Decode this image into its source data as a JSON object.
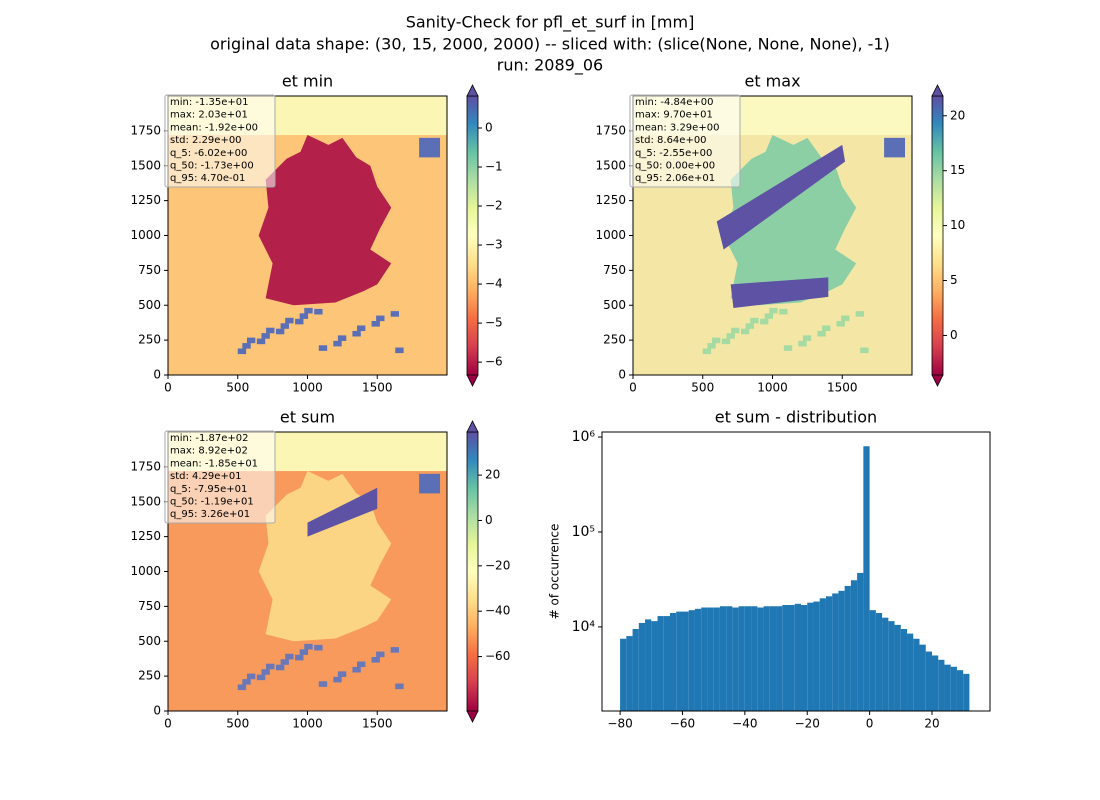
{
  "suptitle": [
    "Sanity-Check for pfl_et_surf in [mm]",
    "original data shape: (30, 15, 2000, 2000) -- sliced with: (slice(None, None, None), -1)",
    "run: 2089_06"
  ],
  "chart_data": [
    {
      "type": "heatmap",
      "title": "et min",
      "xlim": [
        0,
        2000
      ],
      "ylim": [
        0,
        2000
      ],
      "xticks": [
        0,
        500,
        1000,
        1500
      ],
      "yticks": [
        0,
        250,
        500,
        750,
        1000,
        1250,
        1500,
        1750
      ],
      "colormap": "Spectral",
      "clim": [
        -6.33,
        0.82
      ],
      "cticks": [
        {
          "value": 0,
          "label": "0"
        },
        {
          "value": -1,
          "label": "−1"
        },
        {
          "value": -2,
          "label": "−2"
        },
        {
          "value": -3,
          "label": "−3"
        },
        {
          "value": -4,
          "label": "−4"
        },
        {
          "value": -5,
          "label": "−5"
        },
        {
          "value": -6,
          "label": "−6"
        }
      ],
      "stats": [
        "min: -1.35e+01",
        "max: 2.03e+01",
        "mean: -1.92e+00",
        "std: 2.29e+00",
        "q_5: -6.02e+00",
        "q_50: -1.73e+00",
        "q_95: 4.70e-01"
      ]
    },
    {
      "type": "heatmap",
      "title": "et max",
      "xlim": [
        0,
        2000
      ],
      "ylim": [
        0,
        2000
      ],
      "xticks": [
        0,
        500,
        1000,
        1500
      ],
      "yticks": [
        0,
        250,
        500,
        750,
        1000,
        1250,
        1500,
        1750
      ],
      "colormap": "Spectral",
      "clim": [
        -3.6,
        21.8
      ],
      "cticks": [
        0,
        5,
        10,
        15,
        20
      ],
      "stats": [
        "min: -4.84e+00",
        "max: 9.70e+01",
        "mean: 3.29e+00",
        "std: 8.64e+00",
        "q_5: -2.55e+00",
        "q_50: 0.00e+00",
        "q_95: 2.06e+01"
      ]
    },
    {
      "type": "heatmap",
      "title": "et sum",
      "xlim": [
        0,
        2000
      ],
      "ylim": [
        0,
        2000
      ],
      "xticks": [
        0,
        500,
        1000,
        1500
      ],
      "yticks": [
        0,
        250,
        500,
        750,
        1000,
        1250,
        1500,
        1750
      ],
      "colormap": "Spectral",
      "clim": [
        -84,
        39
      ],
      "cticks": [
        20,
        0,
        {
          "value": -20,
          "label": "−20"
        },
        {
          "value": -40,
          "label": "−40"
        },
        {
          "value": -60,
          "label": "−60"
        }
      ],
      "stats": [
        "min: -1.87e+02",
        "max: 8.92e+02",
        "mean: -1.85e+01",
        "std: 4.29e+01",
        "q_5: -7.95e+01",
        "q_50: -1.19e+01",
        "q_95: 3.26e+01"
      ]
    },
    {
      "type": "histogram",
      "title": "et sum - distribution",
      "y_label": "# of occurrence",
      "color": "#1f77b4",
      "yscale": "log",
      "xlim": [
        -85.8,
        38.6
      ],
      "ylim": [
        1300,
        1130000
      ],
      "xticks": [
        {
          "value": -80,
          "label": "−80"
        },
        {
          "value": -60,
          "label": "−60"
        },
        {
          "value": -40,
          "label": "−40"
        },
        {
          "value": -20,
          "label": "−20"
        },
        0,
        20
      ],
      "yticks": [
        {
          "value": 10000,
          "label": "10⁴"
        },
        {
          "value": 100000,
          "label": "10⁵"
        },
        {
          "value": 1000000,
          "label": "10⁶"
        }
      ],
      "bins": [
        -80,
        -78,
        -76,
        -74,
        -72,
        -70,
        -68,
        -66,
        -64,
        -62,
        -60,
        -58,
        -56,
        -54,
        -52,
        -50,
        -48,
        -46,
        -44,
        -42,
        -40,
        -38,
        -36,
        -34,
        -32,
        -30,
        -28,
        -26,
        -24,
        -22,
        -20,
        -18,
        -16,
        -14,
        -12,
        -10,
        -8,
        -6,
        -4,
        -2,
        0,
        2,
        4,
        6,
        8,
        10,
        12,
        14,
        16,
        18,
        20,
        22,
        24,
        26,
        28,
        30,
        32
      ],
      "values": [
        7500,
        8000,
        9500,
        11000,
        12000,
        11500,
        13000,
        13000,
        14000,
        14500,
        14500,
        15000,
        15500,
        16000,
        16000,
        16000,
        16500,
        16500,
        16000,
        16500,
        16500,
        16500,
        16000,
        16500,
        16500,
        16500,
        17000,
        17000,
        17500,
        17000,
        18000,
        18500,
        20000,
        21000,
        22500,
        24000,
        27000,
        31000,
        37000,
        800000,
        15000,
        14000,
        12500,
        11500,
        10500,
        9500,
        8500,
        7500,
        6500,
        5500,
        5000,
        4500,
        4000,
        3800,
        3500,
        3200
      ]
    }
  ]
}
